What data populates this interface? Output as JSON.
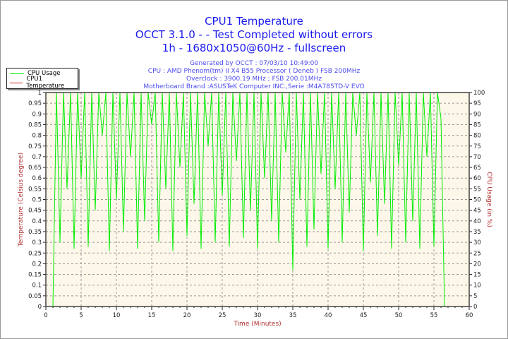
{
  "chart_data": {
    "type": "line",
    "title": [
      "CPU1 Temperature",
      "OCCT 3.1.0 -  - Test Completed without errors",
      "1h - 1680x1050@60Hz - fullscreen"
    ],
    "subtitle": [
      "Generated by OCCT : 07/03/10 10:49:00",
      "CPU : AMD Phenom(tm) II X4 B55 Processor ( Deneb ) FSB 200MHz",
      "Overclock : 3900.19 MHz ; FSB 200.01MHz",
      "Motherboard Brand :ASUSTeK Computer INC.,Serie :M4A785TD-V EVO"
    ],
    "xlabel": "Time (Minutes)",
    "ylabel_left": "Temperature (Celsius degree)",
    "ylabel_right": "CPU Usage (in %)",
    "xlim": [
      0,
      60
    ],
    "ylim_left": [
      0,
      1
    ],
    "ylim_right": [
      0,
      100
    ],
    "xticks": [
      "0",
      "5",
      "10",
      "15",
      "20",
      "25",
      "30",
      "35",
      "40",
      "45",
      "50",
      "55",
      "60"
    ],
    "yticks_left": [
      "0",
      "0.05",
      "0.1",
      "0.15",
      "0.2",
      "0.25",
      "0.3",
      "0.35",
      "0.4",
      "0.45",
      "0.5",
      "0.55",
      "0.6",
      "0.65",
      "0.7",
      "0.75",
      "0.8",
      "0.85",
      "0.9",
      "0.95",
      "1"
    ],
    "yticks_right": [
      "0",
      "5",
      "10",
      "15",
      "20",
      "25",
      "30",
      "35",
      "40",
      "45",
      "50",
      "55",
      "60",
      "65",
      "70",
      "75",
      "80",
      "85",
      "90",
      "95",
      "100"
    ],
    "grid": true,
    "legend_position": "top-left",
    "plot_background": "#fdf7e9",
    "series": [
      {
        "name": "CPU Usage",
        "color": "#00ee00",
        "axis": "right",
        "x": [
          0,
          0.5,
          1,
          1.5,
          2,
          2.5,
          3,
          3.5,
          4,
          4.5,
          5,
          5.5,
          6,
          6.5,
          7,
          7.5,
          8,
          8.5,
          9,
          9.5,
          10,
          10.5,
          11,
          11.5,
          12,
          12.5,
          13,
          13.5,
          14,
          14.5,
          15,
          15.5,
          16,
          16.5,
          17,
          17.5,
          18,
          18.5,
          19,
          19.5,
          20,
          20.5,
          21,
          21.5,
          22,
          22.5,
          23,
          23.5,
          24,
          24.5,
          25,
          25.5,
          26,
          26.5,
          27,
          27.5,
          28,
          28.5,
          29,
          29.5,
          30,
          30.5,
          31,
          31.5,
          32,
          32.5,
          33,
          33.5,
          34,
          34.5,
          35,
          35.5,
          36,
          36.5,
          37,
          37.5,
          38,
          38.5,
          39,
          39.5,
          40,
          40.5,
          41,
          41.5,
          42,
          42.5,
          43,
          43.5,
          44,
          44.5,
          45,
          45.5,
          46,
          46.5,
          47,
          47.5,
          48,
          48.5,
          49,
          49.5,
          50,
          50.5,
          51,
          51.5,
          52,
          52.5,
          53,
          53.5,
          54,
          54.5,
          55,
          55.5,
          56,
          56.5
        ],
        "values": [
          0,
          0,
          0,
          100,
          30,
          100,
          55,
          100,
          27,
          100,
          60,
          100,
          28,
          100,
          45,
          100,
          80,
          100,
          26,
          100,
          50,
          100,
          35,
          100,
          70,
          100,
          27,
          100,
          40,
          100,
          85,
          100,
          30,
          100,
          55,
          100,
          26,
          100,
          65,
          100,
          33,
          100,
          48,
          100,
          27,
          100,
          75,
          100,
          30,
          100,
          52,
          100,
          28,
          100,
          68,
          100,
          32,
          100,
          45,
          100,
          27,
          100,
          60,
          100,
          40,
          100,
          30,
          100,
          72,
          100,
          17,
          100,
          50,
          100,
          28,
          100,
          36,
          100,
          62,
          100,
          27,
          100,
          55,
          100,
          30,
          100,
          44,
          100,
          80,
          100,
          26,
          100,
          58,
          100,
          33,
          100,
          48,
          100,
          27,
          100,
          66,
          100,
          30,
          100,
          40,
          100,
          27,
          100,
          70,
          100,
          28,
          100,
          88,
          0
        ]
      },
      {
        "name": "CPU1 Temperature",
        "color": "#cc2222",
        "axis": "left",
        "x": [],
        "values": []
      }
    ]
  }
}
